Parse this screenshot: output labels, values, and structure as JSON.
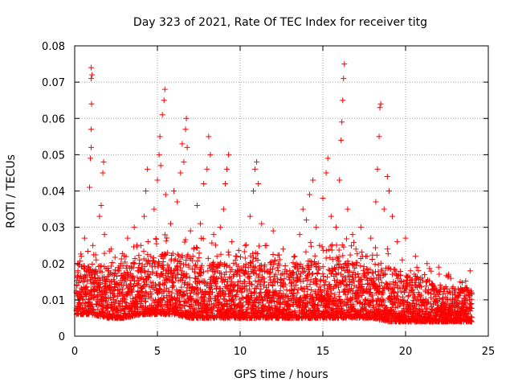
{
  "chart_data": {
    "type": "scatter",
    "title": "Day 323 of 2021, Rate Of TEC Index for receiver titg",
    "xlabel": "GPS time / hours",
    "ylabel": "ROTI / TECUs",
    "xlim": [
      0,
      25
    ],
    "ylim": [
      0,
      0.08
    ],
    "xticks": [
      "0",
      "5",
      "10",
      "15",
      "20",
      "25"
    ],
    "yticks": [
      "0",
      "0.01",
      "0.02",
      "0.03",
      "0.04",
      "0.05",
      "0.06",
      "0.07",
      "0.08"
    ],
    "grid": true,
    "marker": "plus",
    "color": "#ff0000",
    "series": [
      {
        "points": [
          [
            0.1,
            0.012
          ],
          [
            0.2,
            0.018
          ],
          [
            0.3,
            0.009
          ],
          [
            0.4,
            0.022
          ],
          [
            0.5,
            0.015
          ],
          [
            0.6,
            0.027
          ],
          [
            0.7,
            0.011
          ],
          [
            0.8,
            0.019
          ],
          [
            0.9,
            0.041
          ],
          [
            0.95,
            0.049
          ],
          [
            1.0,
            0.052
          ],
          [
            1.0,
            0.057
          ],
          [
            1.02,
            0.064
          ],
          [
            1.0,
            0.071
          ],
          [
            1.0,
            0.074
          ],
          [
            1.05,
            0.072
          ],
          [
            1.1,
            0.025
          ],
          [
            1.2,
            0.013
          ],
          [
            1.3,
            0.021
          ],
          [
            1.4,
            0.016
          ],
          [
            1.5,
            0.033
          ],
          [
            1.6,
            0.036
          ],
          [
            1.7,
            0.045
          ],
          [
            1.75,
            0.048
          ],
          [
            1.8,
            0.028
          ],
          [
            1.9,
            0.012
          ],
          [
            2.0,
            0.018
          ],
          [
            2.2,
            0.024
          ],
          [
            2.4,
            0.015
          ],
          [
            2.6,
            0.011
          ],
          [
            2.8,
            0.02
          ],
          [
            3.0,
            0.016
          ],
          [
            3.2,
            0.027
          ],
          [
            3.4,
            0.013
          ],
          [
            3.6,
            0.03
          ],
          [
            3.8,
            0.018
          ],
          [
            4.0,
            0.025
          ],
          [
            4.2,
            0.033
          ],
          [
            4.3,
            0.04
          ],
          [
            4.4,
            0.046
          ],
          [
            4.6,
            0.022
          ],
          [
            4.8,
            0.035
          ],
          [
            5.0,
            0.043
          ],
          [
            5.1,
            0.05
          ],
          [
            5.15,
            0.055
          ],
          [
            5.2,
            0.047
          ],
          [
            5.3,
            0.061
          ],
          [
            5.4,
            0.065
          ],
          [
            5.45,
            0.068
          ],
          [
            5.5,
            0.039
          ],
          [
            5.6,
            0.023
          ],
          [
            5.8,
            0.031
          ],
          [
            6.0,
            0.04
          ],
          [
            6.2,
            0.037
          ],
          [
            6.4,
            0.045
          ],
          [
            6.5,
            0.053
          ],
          [
            6.6,
            0.048
          ],
          [
            6.7,
            0.057
          ],
          [
            6.75,
            0.06
          ],
          [
            6.8,
            0.052
          ],
          [
            7.0,
            0.029
          ],
          [
            7.2,
            0.024
          ],
          [
            7.4,
            0.036
          ],
          [
            7.6,
            0.031
          ],
          [
            7.8,
            0.042
          ],
          [
            8.0,
            0.046
          ],
          [
            8.1,
            0.055
          ],
          [
            8.2,
            0.05
          ],
          [
            8.4,
            0.028
          ],
          [
            8.6,
            0.022
          ],
          [
            8.8,
            0.03
          ],
          [
            9.0,
            0.035
          ],
          [
            9.1,
            0.042
          ],
          [
            9.2,
            0.046
          ],
          [
            9.3,
            0.05
          ],
          [
            9.5,
            0.026
          ],
          [
            9.8,
            0.022
          ],
          [
            10.0,
            0.018
          ],
          [
            10.3,
            0.025
          ],
          [
            10.6,
            0.033
          ],
          [
            10.8,
            0.04
          ],
          [
            10.9,
            0.046
          ],
          [
            11.0,
            0.048
          ],
          [
            11.1,
            0.042
          ],
          [
            11.3,
            0.031
          ],
          [
            11.6,
            0.025
          ],
          [
            12.0,
            0.029
          ],
          [
            12.3,
            0.02
          ],
          [
            12.6,
            0.024
          ],
          [
            13.0,
            0.018
          ],
          [
            13.3,
            0.022
          ],
          [
            13.6,
            0.028
          ],
          [
            13.8,
            0.035
          ],
          [
            14.0,
            0.032
          ],
          [
            14.2,
            0.039
          ],
          [
            14.4,
            0.043
          ],
          [
            14.6,
            0.03
          ],
          [
            14.8,
            0.025
          ],
          [
            15.0,
            0.038
          ],
          [
            15.2,
            0.045
          ],
          [
            15.3,
            0.049
          ],
          [
            15.5,
            0.033
          ],
          [
            15.8,
            0.03
          ],
          [
            16.0,
            0.043
          ],
          [
            16.1,
            0.054
          ],
          [
            16.15,
            0.059
          ],
          [
            16.2,
            0.065
          ],
          [
            16.25,
            0.071
          ],
          [
            16.3,
            0.075
          ],
          [
            16.5,
            0.035
          ],
          [
            16.8,
            0.028
          ],
          [
            17.0,
            0.024
          ],
          [
            17.3,
            0.03
          ],
          [
            17.6,
            0.022
          ],
          [
            17.9,
            0.027
          ],
          [
            18.2,
            0.037
          ],
          [
            18.3,
            0.046
          ],
          [
            18.4,
            0.055
          ],
          [
            18.45,
            0.063
          ],
          [
            18.5,
            0.064
          ],
          [
            18.7,
            0.035
          ],
          [
            18.9,
            0.044
          ],
          [
            19.0,
            0.04
          ],
          [
            19.2,
            0.033
          ],
          [
            19.5,
            0.026
          ],
          [
            19.8,
            0.021
          ],
          [
            20.0,
            0.027
          ],
          [
            20.3,
            0.018
          ],
          [
            20.6,
            0.022
          ],
          [
            21.0,
            0.016
          ],
          [
            21.3,
            0.02
          ],
          [
            21.6,
            0.014
          ],
          [
            22.0,
            0.019
          ],
          [
            22.3,
            0.013
          ],
          [
            22.6,
            0.017
          ],
          [
            23.0,
            0.012
          ],
          [
            23.3,
            0.015
          ],
          [
            23.6,
            0.01
          ],
          [
            23.9,
            0.018
          ],
          [
            24.0,
            0.012
          ]
        ],
        "band": {
          "x_range": [
            0.1,
            24.0
          ],
          "envelope": [
            [
              0,
              0.006,
              0.022
            ],
            [
              1,
              0.006,
              0.024
            ],
            [
              2,
              0.005,
              0.024
            ],
            [
              3,
              0.005,
              0.025
            ],
            [
              4,
              0.006,
              0.026
            ],
            [
              5,
              0.006,
              0.028
            ],
            [
              6,
              0.006,
              0.029
            ],
            [
              7,
              0.005,
              0.028
            ],
            [
              8,
              0.005,
              0.027
            ],
            [
              9,
              0.005,
              0.026
            ],
            [
              10,
              0.005,
              0.025
            ],
            [
              11,
              0.005,
              0.027
            ],
            [
              12,
              0.005,
              0.025
            ],
            [
              13,
              0.005,
              0.024
            ],
            [
              14,
              0.005,
              0.026
            ],
            [
              15,
              0.005,
              0.027
            ],
            [
              16,
              0.005,
              0.028
            ],
            [
              17,
              0.005,
              0.026
            ],
            [
              18,
              0.005,
              0.025
            ],
            [
              19,
              0.004,
              0.024
            ],
            [
              20,
              0.004,
              0.022
            ],
            [
              21,
              0.004,
              0.02
            ],
            [
              22,
              0.004,
              0.018
            ],
            [
              23,
              0.004,
              0.016
            ],
            [
              24,
              0.004,
              0.017
            ]
          ]
        }
      }
    ]
  }
}
